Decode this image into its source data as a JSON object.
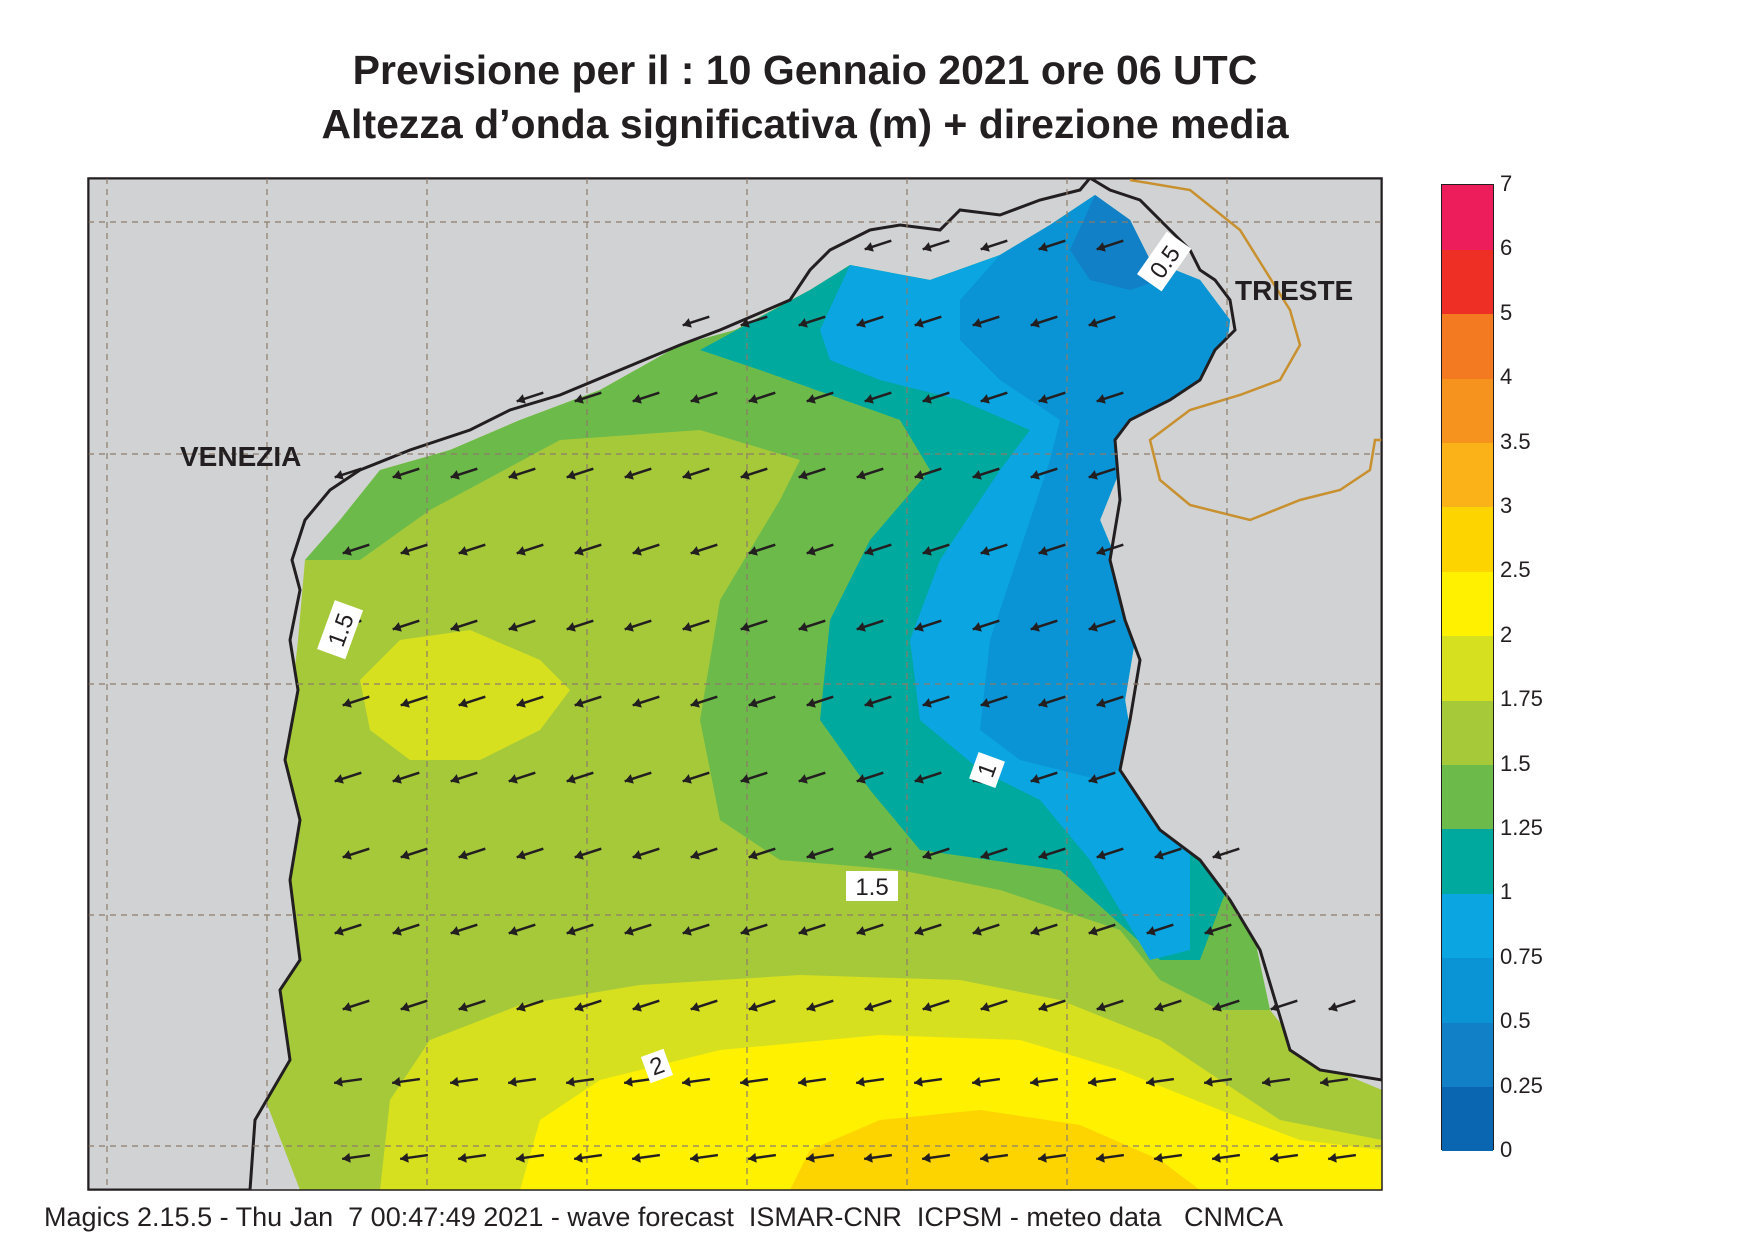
{
  "title": {
    "line1": "Previsione per il  :  10  Gennaio  2021   ore 06 UTC",
    "line2": "Altezza d’onda significativa (m) + direzione media"
  },
  "map": {
    "labels": {
      "venezia": "VENEZIA",
      "trieste": "TRIESTE"
    },
    "contour_labels": [
      "0.5",
      "1.5",
      "1",
      "1.5",
      "2"
    ],
    "colors": {
      "land": "#d1d2d4",
      "border": "#c8902e",
      "coast": "#231f20"
    }
  },
  "legend": {
    "ticks": [
      "0",
      "0.25",
      "0.5",
      "0.75",
      "1",
      "1.25",
      "1.5",
      "1.75",
      "2",
      "2.5",
      "3",
      "3.5",
      "4",
      "5",
      "6",
      "7"
    ],
    "colors": [
      "#0a66b0",
      "#1180c6",
      "#0a94d6",
      "#0ba5e2",
      "#00a99d",
      "#6cbb4a",
      "#a6c93a",
      "#d7e01f",
      "#fff100",
      "#fdd400",
      "#fbb118",
      "#f6921e",
      "#f47a22",
      "#ee2f25",
      "#ed1c5b"
    ]
  },
  "footer": "Magics 2.15.5 - Thu Jan  7 00:47:49 2021 - wave forecast  ISMAR-CNR  ICPSM - meteo data   CNMCA"
}
